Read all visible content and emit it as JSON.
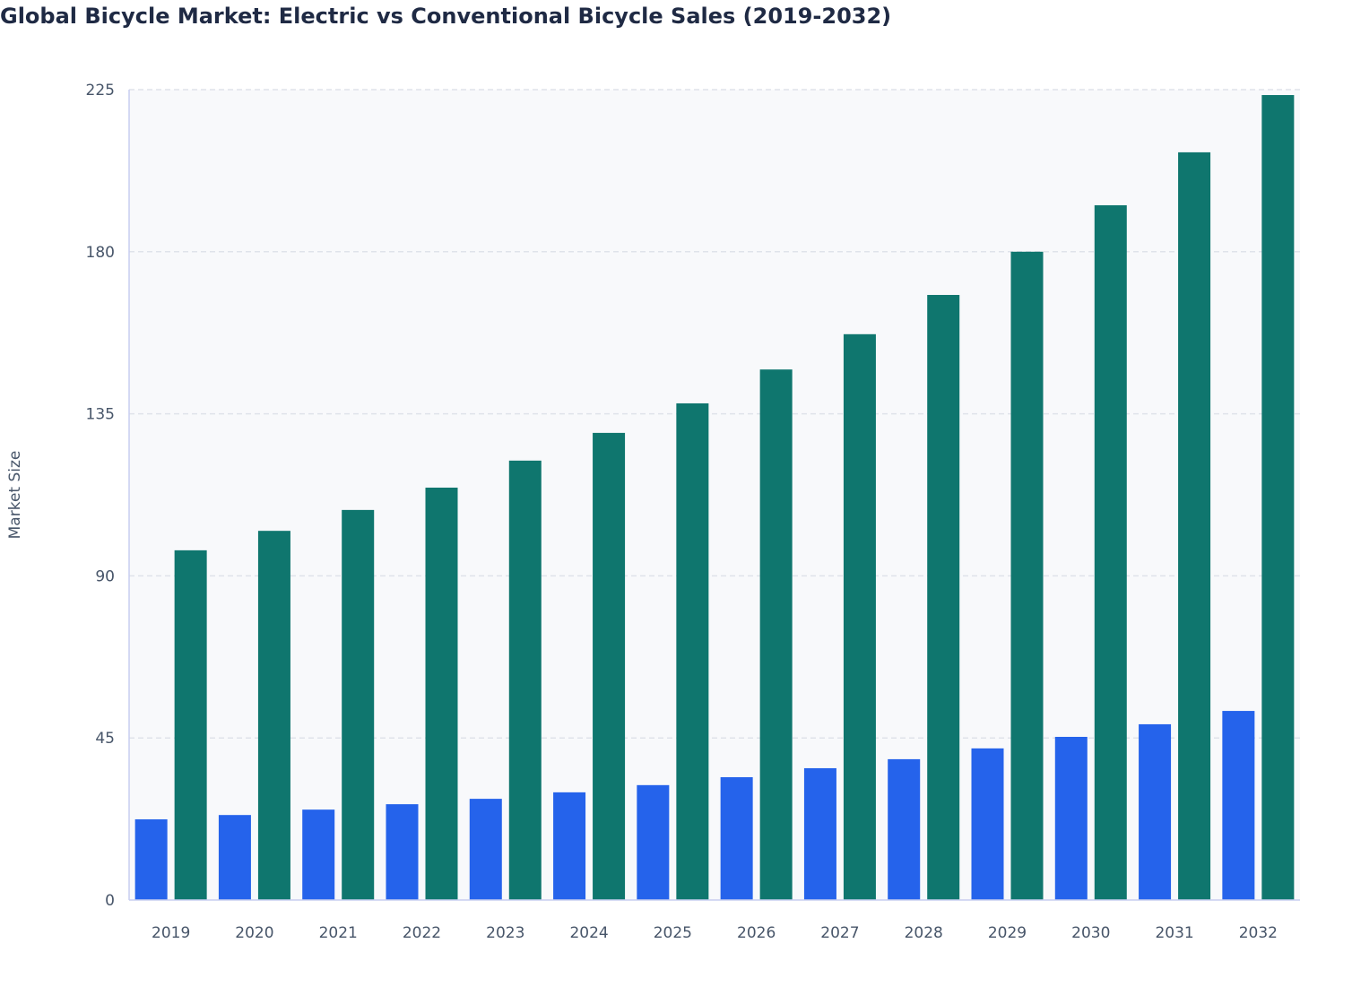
{
  "chart_data": {
    "type": "bar",
    "title": "Global Bicycle Market: Electric vs Conventional Bicycle Sales (2019-2032)",
    "xlabel": "",
    "ylabel": "Market Size",
    "ylim": [
      0,
      225
    ],
    "yticks": [
      0,
      45,
      90,
      135,
      180,
      225
    ],
    "grid": true,
    "categories": [
      "2019",
      "2020",
      "2021",
      "2022",
      "2023",
      "2024",
      "2025",
      "2026",
      "2027",
      "2028",
      "2029",
      "2030",
      "2031",
      "2032"
    ],
    "series": [
      {
        "color": "#2563eb",
        "values": [
          22.4,
          23.6,
          25.1,
          26.6,
          28.1,
          29.9,
          31.9,
          34.1,
          36.6,
          39.1,
          42.1,
          45.3,
          48.8,
          52.5
        ]
      },
      {
        "color": "#0f766e",
        "values": [
          97.1,
          102.5,
          108.3,
          114.5,
          122.0,
          129.7,
          137.9,
          147.3,
          157.1,
          168.0,
          180.0,
          192.9,
          207.6,
          223.5
        ]
      }
    ]
  }
}
